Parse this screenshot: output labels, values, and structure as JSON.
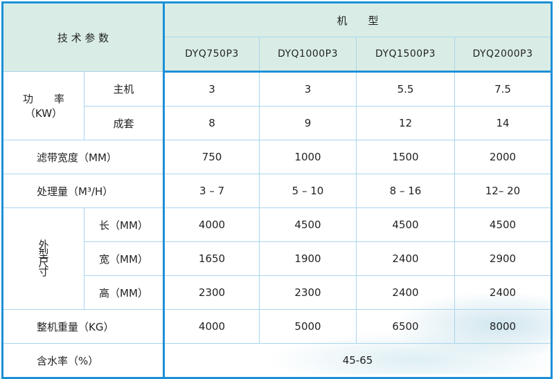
{
  "header": {
    "param_title": "技 术 参 数",
    "model_title": "机　　型",
    "models": [
      "DYQ750P3",
      "DYQ1000P3",
      "DYQ1500P3",
      "DYQ2000P3"
    ]
  },
  "power": {
    "label": "功　　率",
    "unit": "（KW）",
    "rows": [
      {
        "label": "主机",
        "values": [
          "3",
          "3",
          "5.5",
          "7.5"
        ]
      },
      {
        "label": "成套",
        "values": [
          "8",
          "9",
          "12",
          "14"
        ]
      }
    ]
  },
  "belt_width": {
    "label": "滤带宽度（MM）",
    "values": [
      "750",
      "1000",
      "1500",
      "2000"
    ]
  },
  "capacity": {
    "label": "处理量（M³/H）",
    "values": [
      "3 – 7",
      "5 – 10",
      "8 – 16",
      "12– 20"
    ]
  },
  "dimensions": {
    "label": "外型尺寸",
    "rows": [
      {
        "label": "长（MM）",
        "values": [
          "4000",
          "4500",
          "4500",
          "4500"
        ]
      },
      {
        "label": "宽（MM）",
        "values": [
          "1650",
          "1900",
          "2400",
          "2900"
        ]
      },
      {
        "label": "高（MM）",
        "values": [
          "2300",
          "2300",
          "2400",
          "2400"
        ]
      }
    ]
  },
  "weight": {
    "label": "整机重量（KG）",
    "values": [
      "4000",
      "5000",
      "6500",
      "8000"
    ]
  },
  "moisture": {
    "label": "含水率（%）",
    "value": "45-65"
  },
  "colors": {
    "border": "#1c8fd6",
    "grid": "#a9d4ec",
    "header_bg": "#d9ede6"
  }
}
